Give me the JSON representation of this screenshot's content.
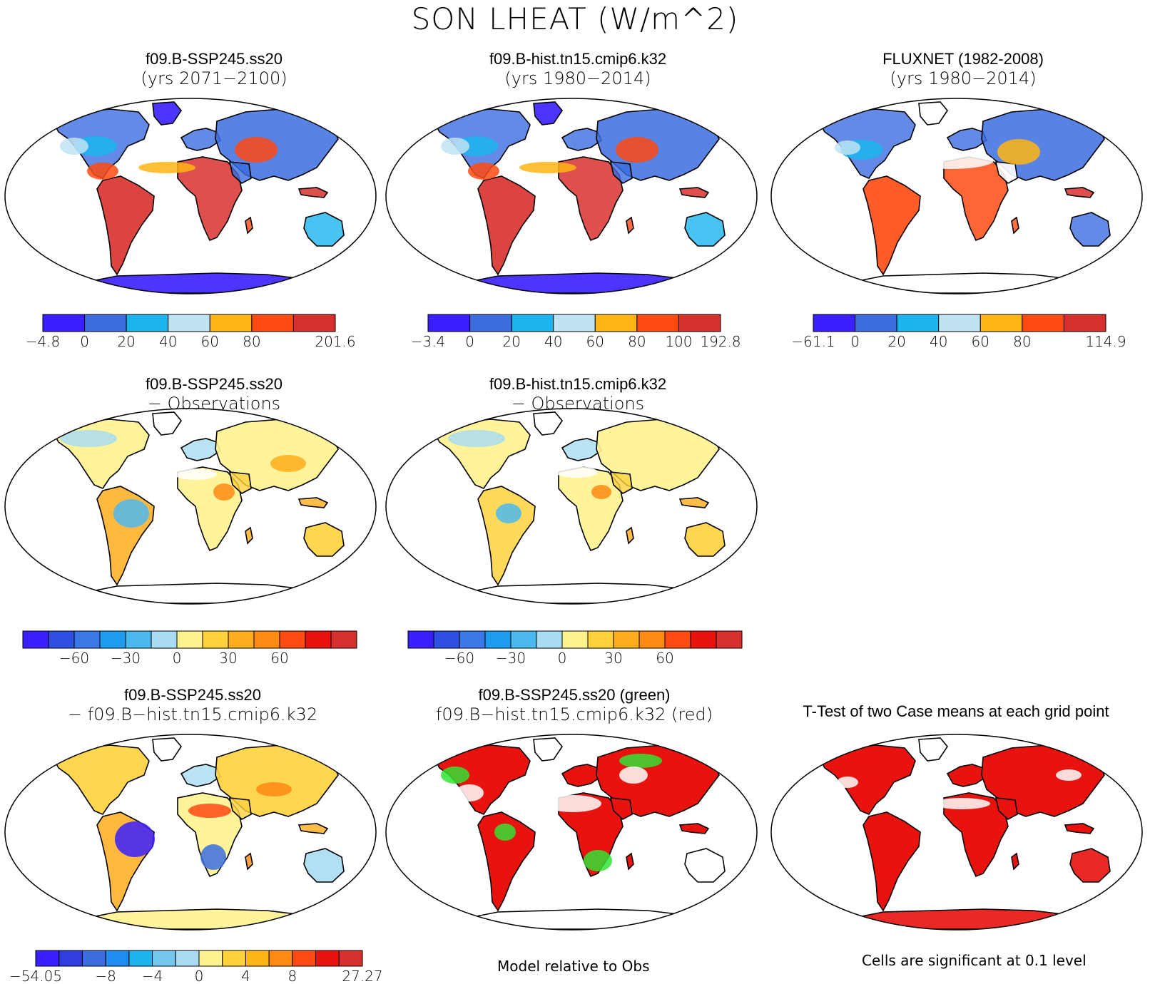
{
  "title": "SON LHEAT (W/m^2)",
  "panels": [
    {
      "title1": "f09.B-SSP245.ss20",
      "title2": "(yrs 2071−2100)",
      "style": "climo"
    },
    {
      "title1": "f09.B-hist.tn15.cmip6.k32",
      "title2": "(yrs 1980−2014)",
      "style": "climo"
    },
    {
      "title1": "FLUXNET (1982-2008)",
      "title2": "(yrs 1980−2014)",
      "style": "obs"
    },
    {
      "title1": "f09.B-SSP245.ss20",
      "title2": "− Observations",
      "style": "bias1"
    },
    {
      "title1": "f09.B-hist.tn15.cmip6.k32",
      "title2": "− Observations",
      "style": "bias2"
    },
    {
      "title1": "f09.B-SSP245.ss20",
      "title2": "− f09.B−hist.tn15.cmip6.k32",
      "style": "diff"
    },
    {
      "title1": "f09.B-SSP245.ss20 (green)",
      "title2": "f09.B−hist.tn15.cmip6.k32 (red)",
      "style": "rel"
    },
    {
      "title1": "T-Test of two Case means at each grid point",
      "title2": "",
      "style": "ttest"
    }
  ],
  "colorbars": [
    {
      "colors": [
        "#3a1fff",
        "#3b6de0",
        "#1cb4ee",
        "#bfe3f3",
        "#ffb514",
        "#ff4a12",
        "#d8302e"
      ],
      "labels": [
        "−4.8",
        "0",
        "20",
        "40",
        "60",
        "80",
        "201.6"
      ]
    },
    {
      "colors": [
        "#3a1fff",
        "#3b6de0",
        "#1cb4ee",
        "#bfe3f3",
        "#ffb514",
        "#ff4a12",
        "#d8302e"
      ],
      "labels": [
        "−3.4",
        "0",
        "20",
        "40",
        "60",
        "80",
        "100",
        "192.8"
      ]
    },
    {
      "colors": [
        "#3a1fff",
        "#3b6de0",
        "#1cb4ee",
        "#bfe3f3",
        "#ffb514",
        "#ff4a12",
        "#d8302e"
      ],
      "labels": [
        "−61.1",
        "0",
        "20",
        "40",
        "60",
        "80",
        "114.9"
      ]
    },
    {
      "colors": [
        "#3a1fff",
        "#2f4fe0",
        "#3b78e8",
        "#1e9cf0",
        "#4cb8f0",
        "#a9dcf2",
        "#fff38f",
        "#ffd23c",
        "#ffad1c",
        "#ff8a14",
        "#ff4a12",
        "#e8120f",
        "#d8302e"
      ],
      "labels": [
        "−60",
        "−30",
        "0",
        "30",
        "60"
      ]
    },
    {
      "colors": [
        "#3a1fff",
        "#2f4fe0",
        "#3b78e8",
        "#1e9cf0",
        "#4cb8f0",
        "#a9dcf2",
        "#fff38f",
        "#ffd23c",
        "#ffad1c",
        "#ff8a14",
        "#ff4a12",
        "#e8120f",
        "#d8302e"
      ],
      "labels": [
        "−60",
        "−30",
        "0",
        "30",
        "60"
      ]
    },
    {
      "colors": [
        "#3a1fff",
        "#2f3ee0",
        "#3b6de0",
        "#1e8cf0",
        "#1cb4ee",
        "#74c8f0",
        "#a9dcf2",
        "#fff38f",
        "#ffd23c",
        "#ffb514",
        "#ff8a14",
        "#ff4a12",
        "#e8120f",
        "#d8302e"
      ],
      "labels": [
        "−54.05",
        "−8",
        "−4",
        "0",
        "4",
        "8",
        "27.27"
      ]
    }
  ],
  "footnotes": {
    "relative": "Model relative to Obs",
    "significance": "Cells are significant at 0.1 level"
  }
}
